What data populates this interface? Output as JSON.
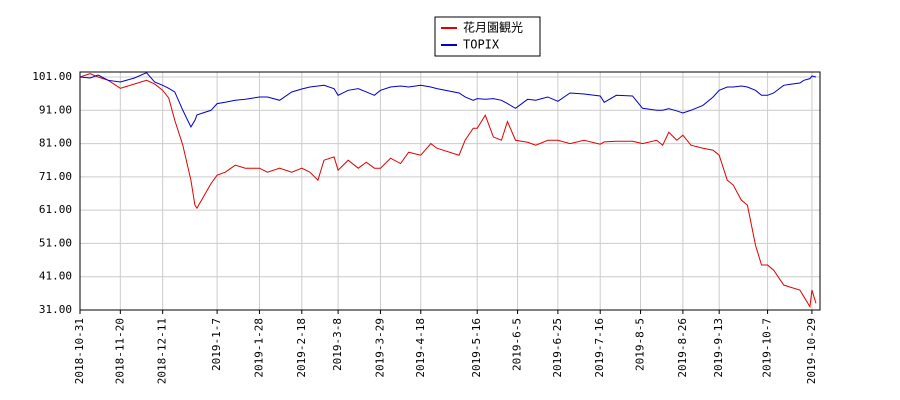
{
  "chart_data": {
    "type": "line",
    "x": [
      "2018-10-31",
      "2018-11-05",
      "2018-11-09",
      "2018-11-14",
      "2018-11-20",
      "2018-11-27",
      "2018-12-03",
      "2018-12-07",
      "2018-12-11",
      "2018-12-14",
      "2018-12-17",
      "2018-12-21",
      "2018-12-25",
      "2018-12-27",
      "2018-12-28",
      "2019-01-04",
      "2019-01-07",
      "2019-01-11",
      "2019-01-16",
      "2019-01-21",
      "2019-01-28",
      "2019-02-01",
      "2019-02-07",
      "2019-02-13",
      "2019-02-18",
      "2019-02-22",
      "2019-02-26",
      "2019-03-01",
      "2019-03-06",
      "2019-03-08",
      "2019-03-13",
      "2019-03-18",
      "2019-03-22",
      "2019-03-26",
      "2019-03-29",
      "2019-04-03",
      "2019-04-08",
      "2019-04-12",
      "2019-04-18",
      "2019-04-23",
      "2019-04-26",
      "2019-05-07",
      "2019-05-10",
      "2019-05-14",
      "2019-05-16",
      "2019-05-20",
      "2019-05-24",
      "2019-05-28",
      "2019-05-31",
      "2019-06-04",
      "2019-06-10",
      "2019-06-14",
      "2019-06-20",
      "2019-06-25",
      "2019-07-01",
      "2019-07-08",
      "2019-07-16",
      "2019-07-18",
      "2019-07-24",
      "2019-08-01",
      "2019-08-06",
      "2019-08-13",
      "2019-08-16",
      "2019-08-19",
      "2019-08-23",
      "2019-08-26",
      "2019-08-30",
      "2019-09-05",
      "2019-09-10",
      "2019-09-13",
      "2019-09-17",
      "2019-09-20",
      "2019-09-24",
      "2019-09-27",
      "2019-10-01",
      "2019-10-04",
      "2019-10-07",
      "2019-10-10",
      "2019-10-15",
      "2019-10-18",
      "2019-10-23",
      "2019-10-25",
      "2019-10-28",
      "2019-10-29",
      "2019-10-31"
    ],
    "series": [
      {
        "name": "花月園観光",
        "color": "#e00000",
        "values": [
          101,
          102,
          101,
          100,
          97.6,
          98.9,
          100,
          98.9,
          97,
          94.7,
          88,
          80.5,
          70,
          62.5,
          61.6,
          69,
          71.5,
          72.4,
          74.5,
          73.6,
          73.6,
          72.4,
          73.6,
          72.4,
          73.6,
          72.4,
          70,
          76,
          77,
          73,
          76,
          73.6,
          75.4,
          73.6,
          73.6,
          76.6,
          75,
          78.4,
          77.5,
          81,
          79.6,
          77.5,
          82,
          85.6,
          85.6,
          89.5,
          83,
          82,
          87.6,
          82,
          81.4,
          80.5,
          82,
          82,
          81,
          82,
          80.8,
          81.5,
          81.7,
          81.7,
          81,
          82,
          80.5,
          84.4,
          82,
          83.5,
          80.5,
          79.6,
          79,
          77.5,
          70,
          68.5,
          64,
          62.5,
          50.5,
          44.5,
          44.5,
          43,
          38.5,
          37.9,
          37,
          35,
          32,
          37,
          33
        ]
      },
      {
        "name": "TOPIX",
        "color": "#0000cc",
        "values": [
          101,
          100.7,
          101.6,
          100,
          99.5,
          100.7,
          102.3,
          99.5,
          98.5,
          97.6,
          96.5,
          91,
          86,
          88,
          89.6,
          91,
          93,
          93.4,
          94,
          94.3,
          95,
          95,
          94,
          96.5,
          97.4,
          98,
          98.3,
          98.5,
          97.5,
          95.5,
          97,
          97.5,
          96.5,
          95.5,
          97,
          98,
          98.3,
          98,
          98.5,
          98,
          97.5,
          96.2,
          95,
          94,
          94.5,
          94.3,
          94.5,
          94,
          93,
          91.6,
          94.3,
          94,
          95,
          93.7,
          96.2,
          95.9,
          95.3,
          93.4,
          95.5,
          95.3,
          91.6,
          91,
          91,
          91.5,
          90.8,
          90.2,
          91,
          92.5,
          95,
          97,
          98,
          98,
          98.3,
          98,
          97,
          95.5,
          95.5,
          96.2,
          98.5,
          98.8,
          99.2,
          100,
          100.5,
          101.3,
          101
        ]
      }
    ],
    "xlim": [
      "2018-10-31",
      "2019-11-02"
    ],
    "xticks": [
      "2018-10-31",
      "2018-11-20",
      "2018-12-11",
      {
        "value": "2019-01-07",
        "label": "2019-1-7"
      },
      {
        "value": "2019-01-28",
        "label": "2019-1-28"
      },
      {
        "value": "2019-02-18",
        "label": "2019-2-18"
      },
      {
        "value": "2019-03-08",
        "label": "2019-3-8"
      },
      {
        "value": "2019-03-29",
        "label": "2019-3-29"
      },
      {
        "value": "2019-04-18",
        "label": "2019-4-18"
      },
      {
        "value": "2019-05-16",
        "label": "2019-5-16"
      },
      {
        "value": "2019-06-05",
        "label": "2019-6-5"
      },
      {
        "value": "2019-06-25",
        "label": "2019-6-25"
      },
      {
        "value": "2019-07-16",
        "label": "2019-7-16"
      },
      {
        "value": "2019-08-05",
        "label": "2019-8-5"
      },
      {
        "value": "2019-08-26",
        "label": "2019-8-26"
      },
      {
        "value": "2019-09-13",
        "label": "2019-9-13"
      },
      {
        "value": "2019-10-07",
        "label": "2019-10-7"
      },
      {
        "value": "2019-10-29",
        "label": "2019-10-29"
      }
    ],
    "ylim": [
      31,
      102.5
    ],
    "yticks": [
      {
        "value": 31,
        "label": "31.00"
      },
      {
        "value": 41,
        "label": "41.00"
      },
      {
        "value": 51,
        "label": "51.00"
      },
      {
        "value": 61,
        "label": "61.00"
      },
      {
        "value": 71,
        "label": "71.00"
      },
      {
        "value": 81,
        "label": "81.00"
      },
      {
        "value": 91,
        "label": "91.00"
      },
      {
        "value": 101,
        "label": "101.00"
      }
    ],
    "grid": true,
    "legend": "top"
  }
}
